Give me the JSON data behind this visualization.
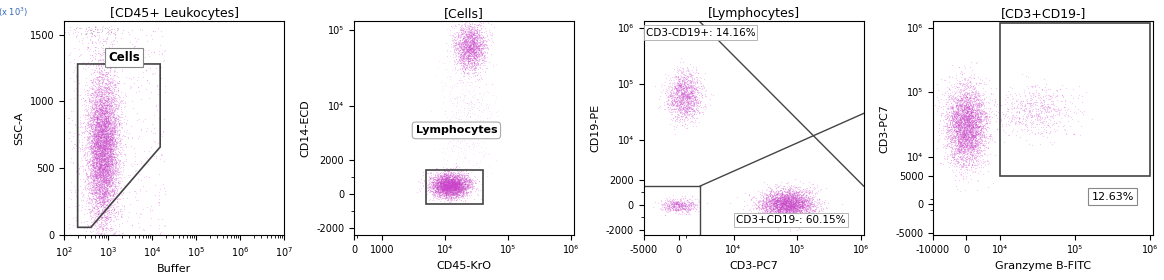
{
  "panel1": {
    "title": "[CD45+ Leukocytes]",
    "xlabel": "Buffer",
    "ylabel": "SSC-A",
    "ylabel2": "(x 10³)",
    "xlim": [
      100,
      10000000.0
    ],
    "ylim": [
      0,
      1600
    ],
    "yticks": [
      0,
      500,
      1000,
      1500
    ],
    "yticklabels": [
      "0",
      "500",
      "1000",
      "1500"
    ],
    "gate_label": "Cells"
  },
  "panel2": {
    "title": "[Cells]",
    "xlabel": "CD45-KrO",
    "ylabel": "CD14-ECD",
    "xlim": [
      0,
      1000000.0
    ],
    "ylim": [
      -2500,
      120000.0
    ],
    "xticks": [
      0,
      1000,
      10000,
      100000,
      1000000
    ],
    "xticklabels": [
      "0",
      "1000",
      "10⁴",
      "10⁵",
      "10⁶"
    ],
    "yticks": [
      -2000,
      0,
      2000,
      10000,
      100000
    ],
    "yticklabels": [
      "-2000",
      "0",
      "2000",
      "10⁴",
      "10⁵"
    ],
    "gate_label": "Lymphocytes"
  },
  "panel3": {
    "title": "[Lymphocytes]",
    "xlabel": "CD3-PC7",
    "ylabel": "CD19-PE",
    "xlim": [
      -5000,
      1000000.0
    ],
    "ylim": [
      -2500,
      1200000.0
    ],
    "xticks": [
      -5000,
      0,
      10000,
      100000,
      1000000
    ],
    "xticklabels": [
      "-5000",
      "0",
      "10⁴",
      "10⁵",
      "10⁶"
    ],
    "yticks": [
      -2000,
      0,
      2000,
      10000,
      100000,
      1000000
    ],
    "yticklabels": [
      "-2000",
      "0",
      "2000",
      "10⁴",
      "10⁵",
      "10⁶"
    ],
    "label1": "CD3-CD19+: 14.16%",
    "label2": "CD3+CD19-: 60.15%"
  },
  "panel4": {
    "title": "[CD3+CD19-]",
    "xlabel": "Granzyme B-FITC",
    "ylabel": "CD3-PC7",
    "xlim": [
      -10000,
      1000000.0
    ],
    "ylim": [
      -5500,
      1200000.0
    ],
    "xticks": [
      -10000,
      0,
      10000,
      100000,
      1000000
    ],
    "xticklabels": [
      "-10000",
      "0",
      "10⁴",
      "10⁵",
      "10⁶"
    ],
    "yticks": [
      -5000,
      0,
      5000,
      10000,
      100000,
      1000000
    ],
    "yticklabels": [
      "-5000",
      "0",
      "5000",
      "10⁴",
      "10⁵",
      "10⁶"
    ],
    "gate_label": "12.63%"
  },
  "dot_color": "#CC44CC",
  "dot_alpha": 0.25,
  "dot_size": 0.8,
  "gate_color": "#444444",
  "bg": "#ffffff",
  "title_fs": 9,
  "label_fs": 8,
  "tick_fs": 7
}
